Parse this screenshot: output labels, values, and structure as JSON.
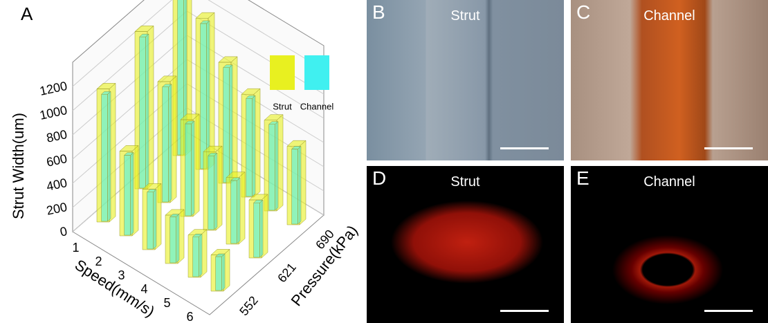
{
  "chart_data": {
    "type": "bar3d",
    "panel": "A",
    "zlabel": "Strut Width(um)",
    "xlabel": "Speed(mm/s)",
    "ylabel": "Pressure(kPa)",
    "categories": [
      "1",
      "2",
      "3",
      "4",
      "5",
      "6"
    ],
    "depth_categories": [
      "552",
      "621",
      "690"
    ],
    "zlim": [
      0,
      1400
    ],
    "zticks": [
      0,
      200,
      400,
      600,
      800,
      1000,
      1200
    ],
    "series": [
      {
        "name": "Strut",
        "color": "#e8f020",
        "values": [
          [
            1100,
            700,
            500,
            400,
            350,
            300
          ],
          [
            1300,
            1000,
            800,
            650,
            550,
            480
          ],
          [
            1500,
            1250,
            1000,
            850,
            750,
            650
          ]
        ]
      },
      {
        "name": "Channel",
        "color": "#40f0f0",
        "values": [
          [
            1050,
            660,
            470,
            380,
            330,
            280
          ],
          [
            1250,
            950,
            760,
            610,
            520,
            450
          ],
          [
            1450,
            1200,
            950,
            810,
            710,
            620
          ]
        ]
      }
    ]
  },
  "panels": [
    {
      "label": "B",
      "caption": "Strut"
    },
    {
      "label": "C",
      "caption": "Channel"
    },
    {
      "label": "D",
      "caption": "Strut"
    },
    {
      "label": "E",
      "caption": "Channel"
    }
  ]
}
